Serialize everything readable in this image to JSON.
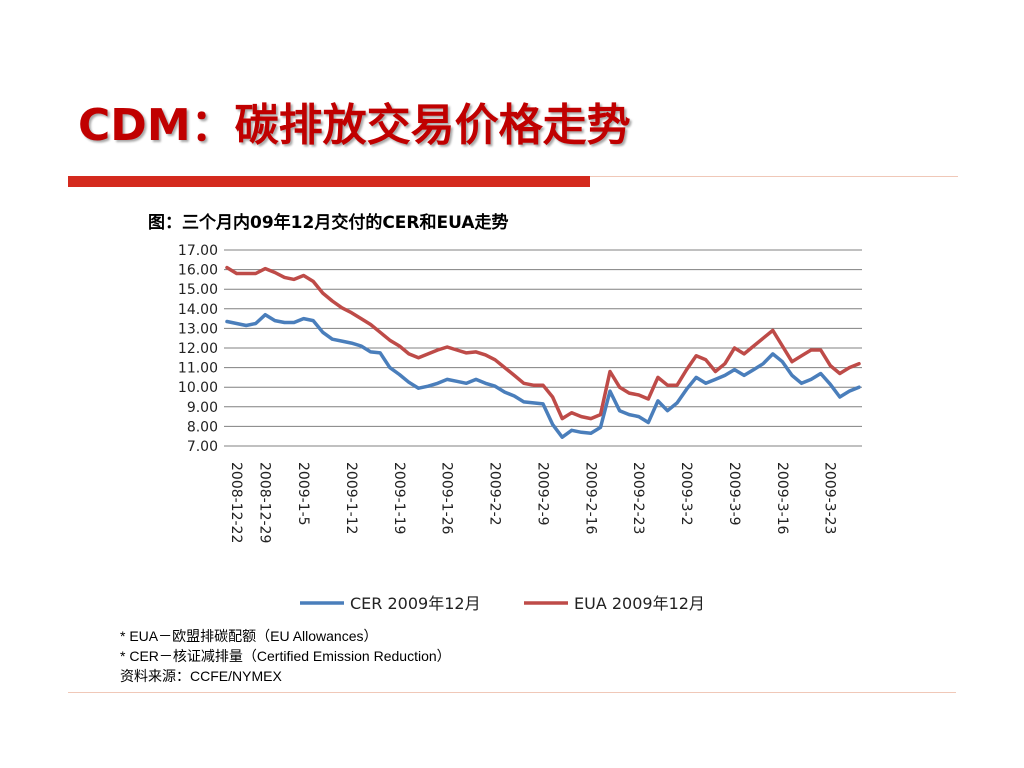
{
  "slide": {
    "title": "CDM：碳排放交易价格走势",
    "notes": [
      "* EUA－欧盟排碳配额（EU Allowances）",
      "* CER－核证减排量（Certified Emission Reduction）",
      "资料来源：CCFE/NYMEX"
    ]
  },
  "colors": {
    "title": "#c00000",
    "accent_bar": "#d42a1e",
    "rule": "#f0c8b8",
    "cer_line": "#4a7ebb",
    "eua_line": "#be4b48",
    "grid": "#808080"
  },
  "chart_data": {
    "type": "line",
    "title": "图：三个月内09年12月交付的CER和EUA走势",
    "xlabel": "",
    "ylabel": "",
    "ylim": [
      7.0,
      17.0
    ],
    "yticks": [
      "17.00",
      "16.00",
      "15.00",
      "14.00",
      "13.00",
      "12.00",
      "11.00",
      "10.00",
      "9.00",
      "8.00",
      "7.00"
    ],
    "x_tick_labels": [
      "2008-12-22",
      "2008-12-29",
      "2009-1-5",
      "2009-1-12",
      "2009-1-19",
      "2009-1-26",
      "2009-2-2",
      "2009-2-9",
      "2009-2-16",
      "2009-2-23",
      "2009-3-2",
      "2009-3-9",
      "2009-3-16",
      "2009-3-23"
    ],
    "grid": true,
    "legend_position": "bottom",
    "x": [
      "2008-12-22",
      "2008-12-23",
      "2008-12-24",
      "2008-12-29",
      "2008-12-30",
      "2008-12-31",
      "2009-1-2",
      "2009-1-5",
      "2009-1-6",
      "2009-1-7",
      "2009-1-8",
      "2009-1-9",
      "2009-1-12",
      "2009-1-13",
      "2009-1-14",
      "2009-1-15",
      "2009-1-16",
      "2009-1-19",
      "2009-1-20",
      "2009-1-21",
      "2009-1-22",
      "2009-1-23",
      "2009-1-26",
      "2009-1-27",
      "2009-1-28",
      "2009-1-29",
      "2009-1-30",
      "2009-2-2",
      "2009-2-3",
      "2009-2-4",
      "2009-2-5",
      "2009-2-6",
      "2009-2-9",
      "2009-2-10",
      "2009-2-11",
      "2009-2-12",
      "2009-2-13",
      "2009-2-16",
      "2009-2-17",
      "2009-2-18",
      "2009-2-19",
      "2009-2-20",
      "2009-2-23",
      "2009-2-24",
      "2009-2-25",
      "2009-2-26",
      "2009-2-27",
      "2009-3-2",
      "2009-3-3",
      "2009-3-4",
      "2009-3-5",
      "2009-3-6",
      "2009-3-9",
      "2009-3-10",
      "2009-3-11",
      "2009-3-12",
      "2009-3-13",
      "2009-3-16",
      "2009-3-17",
      "2009-3-18",
      "2009-3-19",
      "2009-3-20",
      "2009-3-23",
      "2009-3-24",
      "2009-3-25",
      "2009-3-26",
      "2009-3-27"
    ],
    "series": [
      {
        "name": "CER 2009年12月",
        "values": [
          13.35,
          13.25,
          13.15,
          13.25,
          13.7,
          13.4,
          13.3,
          13.3,
          13.5,
          13.4,
          12.8,
          12.45,
          12.35,
          12.25,
          12.1,
          11.8,
          11.75,
          11.0,
          10.65,
          10.25,
          9.95,
          10.05,
          10.2,
          10.4,
          10.3,
          10.2,
          10.4,
          10.2,
          10.05,
          9.75,
          9.55,
          9.25,
          9.2,
          9.15,
          8.1,
          7.45,
          7.8,
          7.7,
          7.65,
          7.95,
          9.8,
          8.8,
          8.6,
          8.5,
          8.2,
          9.3,
          8.8,
          9.2,
          9.9,
          10.5,
          10.2,
          10.4,
          10.6,
          10.9,
          10.6,
          10.9,
          11.2,
          11.7,
          11.3,
          10.6,
          10.2,
          10.4,
          10.7,
          10.15,
          9.5,
          9.8,
          10.0
        ]
      },
      {
        "name": "EUA 2009年12月",
        "values": [
          16.1,
          15.8,
          15.8,
          15.8,
          16.05,
          15.85,
          15.6,
          15.5,
          15.7,
          15.4,
          14.8,
          14.4,
          14.05,
          13.8,
          13.5,
          13.2,
          12.8,
          12.4,
          12.1,
          11.7,
          11.5,
          11.7,
          11.9,
          12.05,
          11.9,
          11.75,
          11.8,
          11.65,
          11.4,
          11.0,
          10.6,
          10.2,
          10.1,
          10.1,
          9.5,
          8.4,
          8.7,
          8.5,
          8.4,
          8.6,
          10.8,
          10.0,
          9.7,
          9.6,
          9.4,
          10.5,
          10.1,
          10.1,
          10.9,
          11.6,
          11.4,
          10.8,
          11.2,
          12.0,
          11.7,
          12.1,
          12.5,
          12.9,
          12.1,
          11.3,
          11.6,
          11.9,
          11.9,
          11.1,
          10.7,
          11.0,
          11.2
        ]
      }
    ]
  }
}
